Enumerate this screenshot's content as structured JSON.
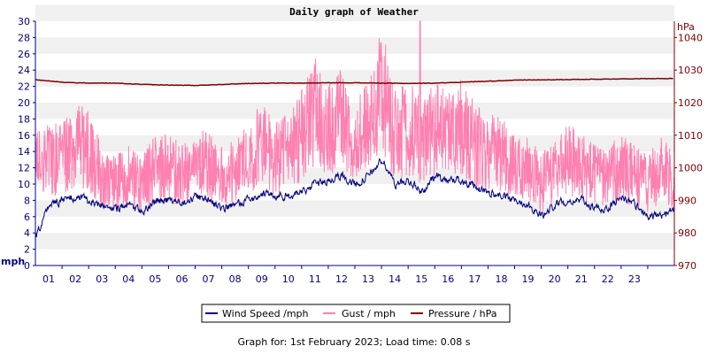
{
  "colors": {
    "wind": "#000080",
    "gust": "#ff80b0",
    "pressure": "#800000",
    "band": "#f0f0f0",
    "axis_left": "#000080",
    "axis_right": "#800000"
  },
  "chart_data": {
    "type": "line",
    "title": "Daily graph of Weather",
    "y_left": {
      "unit": "mph",
      "min": 0,
      "max": 30,
      "ticks": [
        0,
        2,
        4,
        6,
        8,
        10,
        12,
        14,
        16,
        18,
        20,
        22,
        24,
        26,
        28,
        30
      ]
    },
    "y_right": {
      "unit": "hPa",
      "min": 970,
      "max": 1045,
      "ticks": [
        970,
        980,
        990,
        1000,
        1010,
        1020,
        1030,
        1040
      ]
    },
    "x": {
      "min": 0,
      "max": 24,
      "tick_labels": [
        "01",
        "02",
        "03",
        "04",
        "05",
        "06",
        "07",
        "08",
        "09",
        "10",
        "11",
        "12",
        "13",
        "14",
        "15",
        "16",
        "17",
        "18",
        "19",
        "20",
        "21",
        "22",
        "23"
      ]
    },
    "grid": "alternating horizontal bands",
    "legend_placement": "bottom-center",
    "series": [
      {
        "name": "Wind Speed /mph",
        "axis": "left",
        "x": [
          0,
          0.5,
          1,
          1.5,
          2,
          2.5,
          3,
          3.5,
          4,
          4.5,
          5,
          5.5,
          6,
          6.5,
          7,
          7.5,
          8,
          8.5,
          9,
          9.5,
          10,
          10.5,
          11,
          11.5,
          12,
          12.5,
          13,
          13.5,
          14,
          14.5,
          15,
          15.5,
          16,
          16.5,
          17,
          17.5,
          18,
          18.5,
          19,
          19.5,
          20,
          20.5,
          21,
          21.5,
          22,
          22.5,
          23,
          23.5,
          24
        ],
        "values": [
          3.5,
          7.5,
          8,
          8.5,
          8,
          7.5,
          7,
          7.5,
          6.5,
          8,
          8,
          7.5,
          8.5,
          8,
          7,
          7.5,
          8,
          9,
          8.5,
          8.5,
          9,
          10,
          10.5,
          11,
          10,
          11,
          13,
          10,
          10.5,
          9,
          11,
          10.5,
          10.5,
          9.5,
          9,
          8.5,
          8,
          7.5,
          6,
          7.5,
          8,
          8,
          7,
          7,
          8.5,
          7.5,
          6,
          6,
          7
        ]
      },
      {
        "name": "Gust / mph",
        "axis": "left",
        "x": [
          0,
          0.5,
          1,
          1.5,
          2,
          2.5,
          3,
          3.5,
          4,
          4.5,
          5,
          5.5,
          6,
          6.5,
          7,
          7.5,
          8,
          8.5,
          9,
          9.5,
          10,
          10.5,
          11,
          11.5,
          12,
          12.5,
          13,
          13.5,
          14,
          14.5,
          15,
          15.5,
          16,
          16.5,
          17,
          17.5,
          18,
          18.5,
          19,
          19.5,
          20,
          20.5,
          21,
          21.5,
          22,
          22.5,
          23,
          23.5,
          24
        ],
        "values": [
          12,
          13,
          13,
          15,
          14,
          11,
          10,
          11,
          10,
          12,
          12,
          11,
          13,
          12,
          11,
          12,
          13,
          15,
          13,
          14,
          16,
          19,
          17,
          18,
          16,
          17,
          22,
          16,
          17,
          15,
          17,
          16,
          17,
          15,
          14,
          14,
          12,
          12,
          10,
          12,
          13,
          12,
          11,
          11,
          12,
          11,
          10,
          12,
          10
        ],
        "peak": {
          "x": 14.45,
          "value": 30
        }
      },
      {
        "name": "Pressure / hPa",
        "axis": "right",
        "x": [
          0,
          1,
          2,
          3,
          4,
          5,
          6,
          7,
          8,
          9,
          10,
          11,
          12,
          13,
          14,
          15,
          16,
          17,
          18,
          19,
          20,
          21,
          22,
          23,
          24
        ],
        "values": [
          1027,
          1026.3,
          1026,
          1026,
          1025.6,
          1025.4,
          1025.3,
          1025.6,
          1025.9,
          1026,
          1026,
          1026.1,
          1026.1,
          1026,
          1025.9,
          1026,
          1026.3,
          1026.6,
          1026.9,
          1027,
          1027.1,
          1027.2,
          1027.3,
          1027.4,
          1027.4
        ]
      }
    ]
  },
  "footer": "Graph for: 1st February 2023; Load time: 0.08 s"
}
